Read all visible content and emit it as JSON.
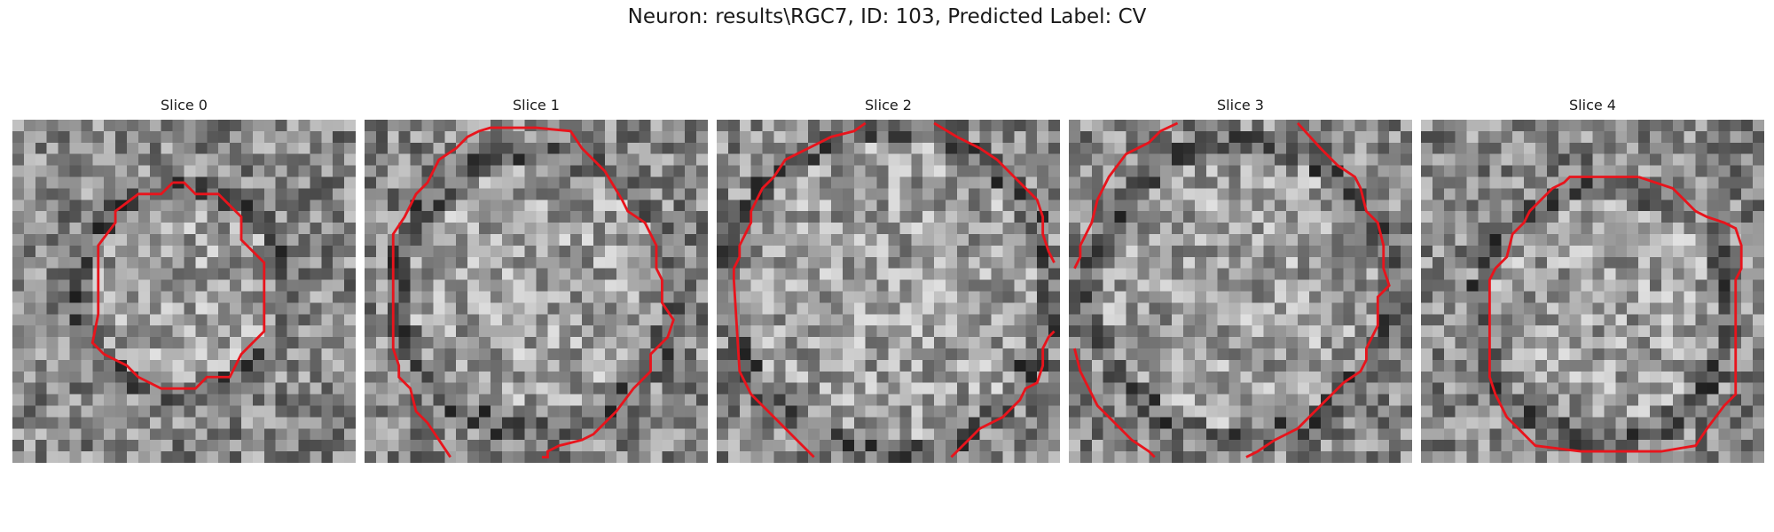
{
  "figure": {
    "title": "Neuron: results\\RGC7, ID: 103, Predicted Label: CV"
  },
  "panels": [
    {
      "title": "Slice 0"
    },
    {
      "title": "Slice 1"
    },
    {
      "title": "Slice 2"
    },
    {
      "title": "Slice 3"
    },
    {
      "title": "Slice 4"
    }
  ],
  "colors": {
    "contour": "#e8141c",
    "background": "#ffffff"
  }
}
